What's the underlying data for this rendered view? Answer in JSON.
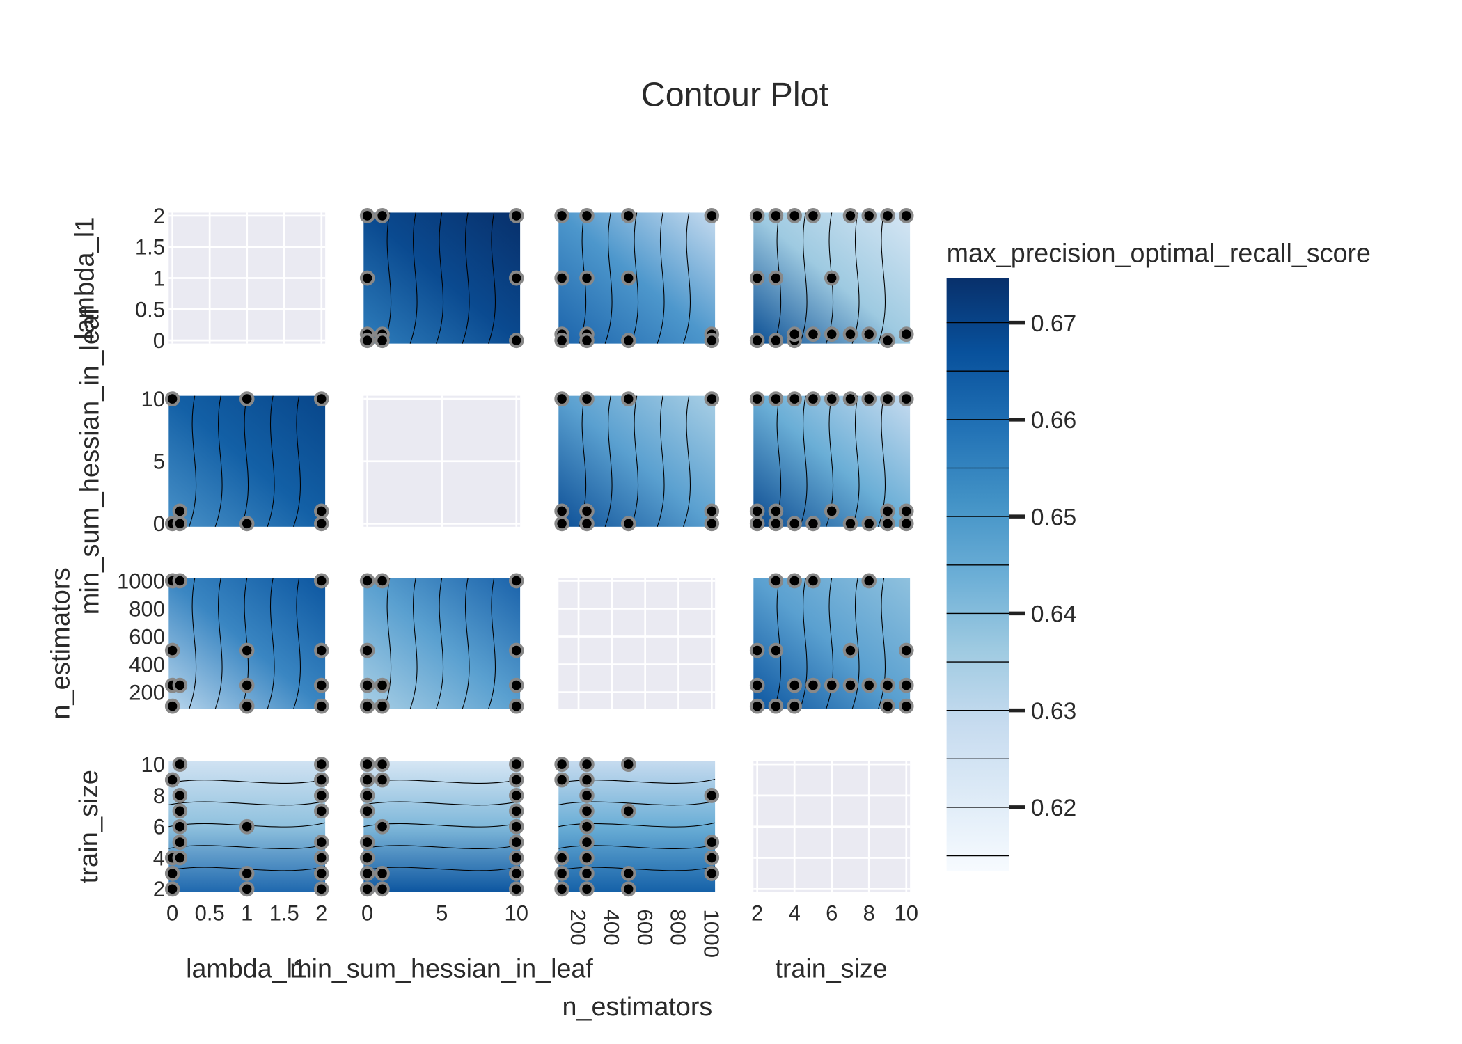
{
  "chart_data": {
    "type": "contour",
    "title": "Contour Plot",
    "params": [
      "lambda_l1",
      "min_sum_hessian_in_leaf",
      "n_estimators",
      "train_size"
    ],
    "axes": {
      "lambda_l1": {
        "range": [
          -0.05,
          2.05
        ],
        "ticks": [
          0,
          0.5,
          1,
          1.5,
          2
        ],
        "tick_labels": [
          "0",
          "0.5",
          "1",
          "1.5",
          "2"
        ]
      },
      "min_sum_hessian_in_leaf": {
        "range": [
          -0.25,
          10.25
        ],
        "ticks": [
          0,
          5,
          10
        ],
        "tick_labels": [
          "0",
          "5",
          "10"
        ]
      },
      "n_estimators": {
        "range": [
          80,
          1020
        ],
        "ticks": [
          200,
          400,
          600,
          800,
          1000
        ],
        "tick_labels": [
          "200",
          "400",
          "600",
          "800",
          "1000"
        ]
      },
      "train_size": {
        "range": [
          1.8,
          10.2
        ],
        "ticks": [
          2,
          4,
          6,
          8,
          10
        ],
        "tick_labels": [
          "2",
          "4",
          "6",
          "8",
          "10"
        ]
      }
    },
    "colorbar": {
      "title": "max_precision_optimal_recall_score",
      "colorscale": "Blues",
      "range": [
        0.6134,
        0.6746
      ],
      "ticks": [
        0.67,
        0.66,
        0.65,
        0.64,
        0.63,
        0.62
      ],
      "tick_labels": [
        "0.67",
        "0.66",
        "0.65",
        "0.64",
        "0.63",
        "0.62"
      ],
      "contour_step": 0.005,
      "low_color": "#f7fbff",
      "high_color": "#08306b"
    },
    "marker": {
      "fill": "#000000",
      "outline": "#888888"
    },
    "panels": [
      {
        "row": 0,
        "col": 1,
        "x": "min_sum_hessian_in_leaf",
        "y": "lambda_l1",
        "gradient": [
          "#2f7ebc",
          "#0a4a90",
          "#08306b"
        ],
        "points": [
          [
            0,
            2
          ],
          [
            1,
            2
          ],
          [
            10,
            2
          ],
          [
            0,
            1
          ],
          [
            10,
            1
          ],
          [
            0,
            0.1
          ],
          [
            1,
            0.1
          ],
          [
            0,
            0
          ],
          [
            1,
            0
          ],
          [
            10,
            0
          ]
        ]
      },
      {
        "row": 0,
        "col": 2,
        "x": "n_estimators",
        "y": "lambda_l1",
        "gradient": [
          "#1c64ab",
          "#4d97cc",
          "#c6dbef"
        ],
        "points": [
          [
            100,
            2
          ],
          [
            250,
            2
          ],
          [
            500,
            2
          ],
          [
            1000,
            2
          ],
          [
            100,
            1
          ],
          [
            250,
            1
          ],
          [
            500,
            1
          ],
          [
            100,
            0.1
          ],
          [
            250,
            0.1
          ],
          [
            100,
            0
          ],
          [
            250,
            0
          ],
          [
            500,
            0
          ],
          [
            1000,
            0.1
          ],
          [
            1000,
            0
          ]
        ]
      },
      {
        "row": 0,
        "col": 3,
        "x": "train_size",
        "y": "lambda_l1",
        "gradient": [
          "#0b4f94",
          "#9ecae1",
          "#d6e6f4"
        ],
        "points": [
          [
            2,
            2
          ],
          [
            3,
            2
          ],
          [
            4,
            2
          ],
          [
            5,
            2
          ],
          [
            7,
            2
          ],
          [
            8,
            2
          ],
          [
            9,
            2
          ],
          [
            10,
            2
          ],
          [
            2,
            1
          ],
          [
            3,
            1
          ],
          [
            6,
            1
          ],
          [
            2,
            0
          ],
          [
            3,
            0
          ],
          [
            4,
            0
          ],
          [
            4,
            0.1
          ],
          [
            5,
            0.1
          ],
          [
            6,
            0.1
          ],
          [
            7,
            0.1
          ],
          [
            8,
            0.1
          ],
          [
            9,
            0
          ],
          [
            10,
            0.1
          ]
        ]
      },
      {
        "row": 1,
        "col": 0,
        "x": "lambda_l1",
        "y": "min_sum_hessian_in_leaf",
        "gradient": [
          "#4a92c8",
          "#1360a6",
          "#08468a"
        ],
        "points": [
          [
            0,
            10
          ],
          [
            1,
            10
          ],
          [
            2,
            10
          ],
          [
            0.1,
            1
          ],
          [
            2,
            1
          ],
          [
            0,
            0
          ],
          [
            0.1,
            0
          ],
          [
            1,
            0
          ],
          [
            2,
            0
          ]
        ]
      },
      {
        "row": 1,
        "col": 2,
        "x": "n_estimators",
        "y": "min_sum_hessian_in_leaf",
        "gradient": [
          "#0d4f96",
          "#5aa0d0",
          "#a9cfe5"
        ],
        "points": [
          [
            100,
            10
          ],
          [
            250,
            10
          ],
          [
            500,
            10
          ],
          [
            1000,
            10
          ],
          [
            100,
            1
          ],
          [
            250,
            1
          ],
          [
            1000,
            1
          ],
          [
            100,
            0
          ],
          [
            250,
            0
          ],
          [
            500,
            0
          ],
          [
            1000,
            0
          ]
        ]
      },
      {
        "row": 1,
        "col": 3,
        "x": "train_size",
        "y": "min_sum_hessian_in_leaf",
        "gradient": [
          "#0b4a90",
          "#6aaed6",
          "#c6dbef"
        ],
        "points": [
          [
            2,
            10
          ],
          [
            3,
            10
          ],
          [
            4,
            10
          ],
          [
            5,
            10
          ],
          [
            6,
            10
          ],
          [
            7,
            10
          ],
          [
            8,
            10
          ],
          [
            9,
            10
          ],
          [
            10,
            10
          ],
          [
            2,
            1
          ],
          [
            3,
            1
          ],
          [
            6,
            1
          ],
          [
            9,
            1
          ],
          [
            10,
            1
          ],
          [
            2,
            0
          ],
          [
            3,
            0
          ],
          [
            4,
            0
          ],
          [
            5,
            0
          ],
          [
            7,
            0
          ],
          [
            8,
            0
          ],
          [
            9,
            0
          ],
          [
            10,
            0
          ]
        ]
      },
      {
        "row": 2,
        "col": 0,
        "x": "lambda_l1",
        "y": "n_estimators",
        "gradient": [
          "#b9d6ec",
          "#3a86c2",
          "#0c56a0"
        ],
        "points": [
          [
            0,
            1000
          ],
          [
            0.1,
            1000
          ],
          [
            2,
            1000
          ],
          [
            0,
            500
          ],
          [
            1,
            500
          ],
          [
            2,
            500
          ],
          [
            0,
            250
          ],
          [
            0.1,
            250
          ],
          [
            1,
            250
          ],
          [
            2,
            250
          ],
          [
            0,
            100
          ],
          [
            1,
            100
          ],
          [
            2,
            100
          ]
        ]
      },
      {
        "row": 2,
        "col": 1,
        "x": "min_sum_hessian_in_leaf",
        "y": "n_estimators",
        "gradient": [
          "#a9cfe5",
          "#5aa0d0",
          "#1a62aa"
        ],
        "points": [
          [
            0,
            1000
          ],
          [
            1,
            1000
          ],
          [
            10,
            1000
          ],
          [
            0,
            500
          ],
          [
            10,
            500
          ],
          [
            0,
            250
          ],
          [
            1,
            250
          ],
          [
            10,
            250
          ],
          [
            0,
            100
          ],
          [
            1,
            100
          ],
          [
            10,
            100
          ]
        ]
      },
      {
        "row": 2,
        "col": 3,
        "x": "train_size",
        "y": "n_estimators",
        "gradient": [
          "#0d56a0",
          "#5aa0d0",
          "#8fc1de"
        ],
        "points": [
          [
            3,
            1000
          ],
          [
            4,
            1000
          ],
          [
            5,
            1000
          ],
          [
            8,
            1000
          ],
          [
            2,
            500
          ],
          [
            3,
            500
          ],
          [
            7,
            500
          ],
          [
            10,
            500
          ],
          [
            2,
            250
          ],
          [
            4,
            250
          ],
          [
            5,
            250
          ],
          [
            6,
            250
          ],
          [
            7,
            250
          ],
          [
            8,
            250
          ],
          [
            9,
            250
          ],
          [
            10,
            250
          ],
          [
            2,
            100
          ],
          [
            3,
            100
          ],
          [
            4,
            100
          ],
          [
            9,
            100
          ],
          [
            10,
            100
          ]
        ]
      },
      {
        "row": 3,
        "col": 0,
        "x": "lambda_l1",
        "y": "train_size",
        "gradient": [
          "#d0e2f2",
          "#8fc1de",
          "#1f68ae"
        ],
        "vertical": true,
        "points": [
          [
            0.1,
            10
          ],
          [
            0,
            9
          ],
          [
            0.1,
            8
          ],
          [
            0.1,
            7
          ],
          [
            0.1,
            6
          ],
          [
            0.1,
            5
          ],
          [
            0,
            4
          ],
          [
            0.1,
            4
          ],
          [
            0,
            3
          ],
          [
            0,
            2
          ],
          [
            1,
            6
          ],
          [
            1,
            3
          ],
          [
            1,
            2
          ],
          [
            2,
            10
          ],
          [
            2,
            9
          ],
          [
            2,
            8
          ],
          [
            2,
            7
          ],
          [
            2,
            5
          ],
          [
            2,
            4
          ],
          [
            2,
            3
          ],
          [
            2,
            2
          ]
        ]
      },
      {
        "row": 3,
        "col": 1,
        "x": "min_sum_hessian_in_leaf",
        "y": "train_size",
        "gradient": [
          "#d6e6f4",
          "#7fb8da",
          "#0d56a0"
        ],
        "vertical": true,
        "points": [
          [
            0,
            10
          ],
          [
            1,
            10
          ],
          [
            10,
            10
          ],
          [
            0,
            9
          ],
          [
            1,
            9
          ],
          [
            10,
            9
          ],
          [
            0,
            8
          ],
          [
            10,
            8
          ],
          [
            0,
            7
          ],
          [
            10,
            7
          ],
          [
            1,
            6
          ],
          [
            10,
            6
          ],
          [
            0,
            5
          ],
          [
            10,
            5
          ],
          [
            0,
            4
          ],
          [
            10,
            4
          ],
          [
            0,
            3
          ],
          [
            1,
            3
          ],
          [
            10,
            3
          ],
          [
            0,
            2
          ],
          [
            1,
            2
          ],
          [
            10,
            2
          ]
        ]
      },
      {
        "row": 3,
        "col": 2,
        "x": "n_estimators",
        "y": "train_size",
        "gradient": [
          "#c6dbef",
          "#6aaed6",
          "#1561a8"
        ],
        "vertical": true,
        "points": [
          [
            100,
            10
          ],
          [
            250,
            10
          ],
          [
            500,
            10
          ],
          [
            100,
            9
          ],
          [
            250,
            9
          ],
          [
            250,
            8
          ],
          [
            250,
            7
          ],
          [
            500,
            7
          ],
          [
            250,
            6
          ],
          [
            250,
            5
          ],
          [
            100,
            4
          ],
          [
            250,
            4
          ],
          [
            1000,
            8
          ],
          [
            1000,
            5
          ],
          [
            1000,
            4
          ],
          [
            1000,
            3
          ],
          [
            100,
            3
          ],
          [
            250,
            3
          ],
          [
            500,
            3
          ],
          [
            100,
            2
          ],
          [
            250,
            2
          ],
          [
            500,
            2
          ]
        ]
      }
    ]
  }
}
